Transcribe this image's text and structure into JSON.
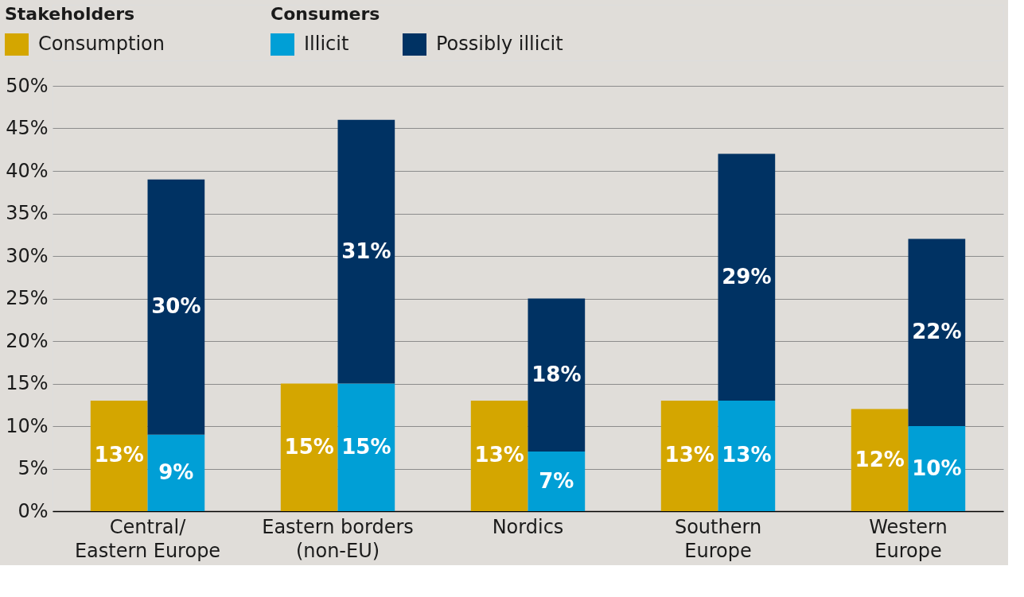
{
  "chart_data": {
    "type": "bar",
    "categories": [
      "Central/\nEastern Europe",
      "Eastern borders\n(non-EU)",
      "Nordics",
      "Southern\nEurope",
      "Western\nEurope"
    ],
    "series": [
      {
        "name": "Consumption",
        "color": "#d4a600",
        "values": [
          13,
          15,
          13,
          13,
          12
        ],
        "base": [
          0,
          0,
          0,
          0,
          0
        ],
        "value_labels": [
          "13%",
          "15%",
          "13%",
          "13%",
          "12%"
        ]
      },
      {
        "name": "Illicit",
        "color": "#009fd6",
        "values": [
          9,
          15,
          7,
          13,
          10
        ],
        "base": [
          0,
          0,
          0,
          0,
          0
        ],
        "value_labels": [
          "9%",
          "15%",
          "7%",
          "13%",
          "10%"
        ]
      },
      {
        "name": "Possibly illicit",
        "color": "#003263",
        "values": [
          30,
          31,
          18,
          29,
          22
        ],
        "base": [
          9,
          15,
          7,
          13,
          10
        ],
        "value_labels": [
          "30%",
          "31%",
          "18%",
          "29%",
          "22%"
        ]
      }
    ],
    "annotations": [
      "Stakeholders",
      "Consumers"
    ],
    "ylim": [
      0,
      50
    ],
    "yticks": [
      {
        "value": 0,
        "label": "0%"
      },
      {
        "value": 5,
        "label": "5%"
      },
      {
        "value": 10,
        "label": "10%"
      },
      {
        "value": 15,
        "label": "15%"
      },
      {
        "value": 20,
        "label": "20%"
      },
      {
        "value": 25,
        "label": "25%"
      },
      {
        "value": 30,
        "label": "30%"
      },
      {
        "value": 35,
        "label": "35%"
      },
      {
        "value": 40,
        "label": "40%"
      },
      {
        "value": 45,
        "label": "45%"
      },
      {
        "value": 50,
        "label": "50%"
      }
    ],
    "grid": "y",
    "legend": "top left"
  }
}
